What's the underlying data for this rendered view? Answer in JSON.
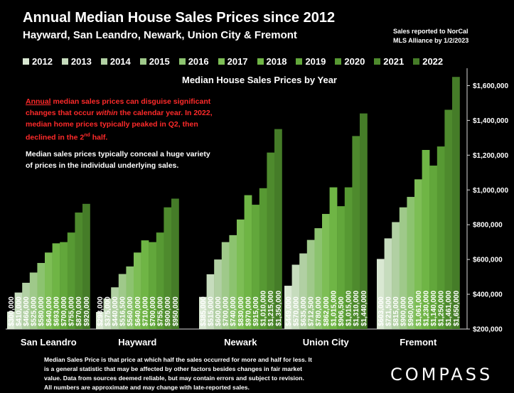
{
  "header": {
    "title": "Annual Median House Sales Prices since 2012",
    "subtitle": "Hayward, San Leandro, Newark, Union City & Fremont",
    "source_line1": "Sales reported to NorCal",
    "source_line2": "MLS Alliance by 1/2/2023"
  },
  "notes": {
    "red_part1": "Annual",
    "red_part2": " median sales prices can disguise significant changes that occur ",
    "red_part3": "within",
    "red_part4": " the calendar year. In 2022, median home prices typically peaked in Q2, then declined in the 2",
    "red_sup": "nd",
    "red_part5": " half.",
    "white": "Median sales prices typically conceal a huge variety of prices in the individual underlying sales."
  },
  "footer": {
    "line1": "Median Sales Price is that price at which half the sales occurred for more and half for less. It",
    "line2": "is a general statistic that may be affected by other factors besides changes in fair market",
    "line3": "value. Data from sources deemed reliable, but may contain errors and subject to revision.",
    "line4": "All numbers are approximate and may change with late-reported sales."
  },
  "logo": "COMPASS",
  "colors": {
    "background": "#000000",
    "years": [
      "#d9e8d2",
      "#c6dcbd",
      "#b1d0a3",
      "#9fc98a",
      "#8cc36f",
      "#7dbe55",
      "#6fb545",
      "#62a73b",
      "#579933",
      "#4e8a2d",
      "#457c28"
    ]
  },
  "chart_data": {
    "type": "bar",
    "title": "Median House Sales Prices by Year",
    "ylim": [
      200000,
      1700000
    ],
    "yticks": [
      200000,
      400000,
      600000,
      800000,
      1000000,
      1200000,
      1400000,
      1600000
    ],
    "ytick_labels": [
      "$200,000",
      "$400,000",
      "$600,000",
      "$800,000",
      "$1,000,000",
      "$1,200,000",
      "$1,400,000",
      "$1,600,000"
    ],
    "legend_placement": "top",
    "years": [
      "2012",
      "2013",
      "2014",
      "2015",
      "2016",
      "2017",
      "2018",
      "2019",
      "2020",
      "2021",
      "2022"
    ],
    "groups": [
      {
        "name": "San Leandro",
        "values": [
          300000,
          410000,
          466000,
          525000,
          580000,
          640000,
          693000,
          700000,
          755000,
          870000,
          920000
        ],
        "labels": [
          "$300,000",
          "$410,000",
          "$466,000",
          "$525,000",
          "$580,000",
          "$640,000",
          "$693,000",
          "$700,000",
          "$755,000",
          "$870,000",
          "$920,000"
        ]
      },
      {
        "name": "Hayward",
        "values": [
          298000,
          375000,
          440000,
          516500,
          560000,
          640000,
          710000,
          700000,
          755000,
          900000,
          950000
        ],
        "labels": [
          "$298,000",
          "$375,000",
          "$440,000",
          "$516,500",
          "$560,000",
          "$640,000",
          "$710,000",
          "$700,000",
          "$755,000",
          "$900,000",
          "$950,000"
        ]
      },
      {
        "name": "Newark",
        "values": [
          385000,
          515000,
          600000,
          700000,
          740000,
          830000,
          970000,
          915000,
          1010000,
          1215000,
          1350000
        ],
        "labels": [
          "$385,000",
          "$515,000",
          "$600,000",
          "$700,000",
          "$740,000",
          "$830,000",
          "$970,000",
          "$915,000",
          "$1,010,000",
          "$1,215,000",
          "$1,350,000"
        ]
      },
      {
        "name": "Union City",
        "values": [
          449000,
          570000,
          635000,
          712500,
          780000,
          862000,
          1015000,
          906500,
          1015000,
          1310000,
          1440000
        ],
        "labels": [
          "$449,000",
          "$570,000",
          "$635,000",
          "$712,500",
          "$780,000",
          "$862,000",
          "$1,015,000",
          "$906,500",
          "$1,015,000",
          "$1,310,000",
          "$1,440,000"
        ]
      },
      {
        "name": "Fremont",
        "values": [
          603000,
          721500,
          815000,
          900000,
          960000,
          1061000,
          1230000,
          1140000,
          1250000,
          1461000,
          1650000
        ],
        "labels": [
          "$603,000",
          "$721,500",
          "$815,000",
          "$900,000",
          "$960,000",
          "$1,061,000",
          "$1,230,000",
          "$1,140,000",
          "$1,250,000",
          "$1,461,000",
          "$1,650,000"
        ]
      }
    ]
  }
}
